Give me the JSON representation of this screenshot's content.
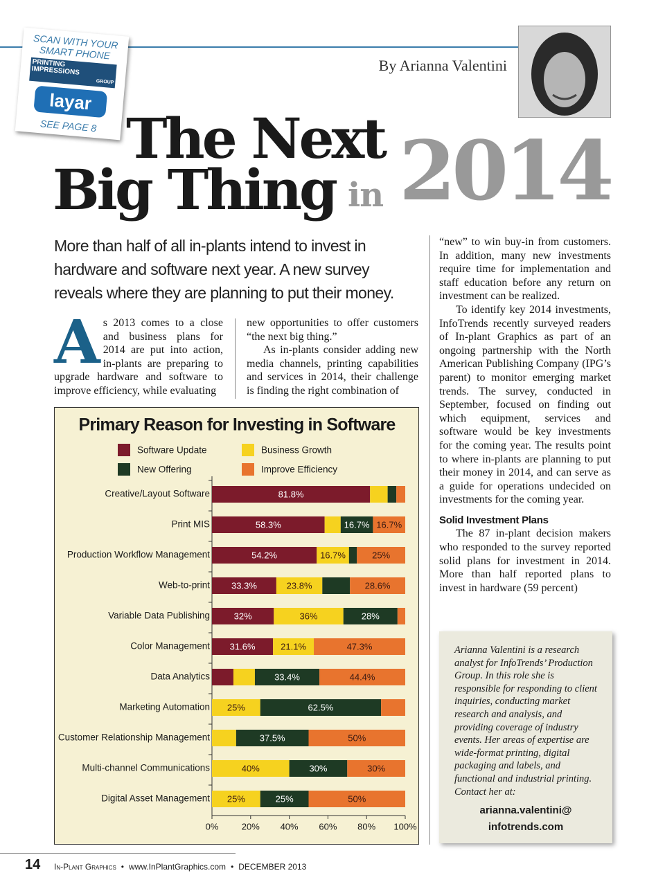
{
  "badge": {
    "scan": "SCAN WITH YOUR",
    "phone": "SMART PHONE",
    "logo_top": "PRINTING",
    "logo_mid": "IMPRESSIONS",
    "logo_bottom": "GROUP",
    "app": "layar",
    "see": "SEE PAGE 8"
  },
  "byline": "By Arianna Valentini",
  "headline": {
    "line1": "The Next",
    "line2": "Big Thing",
    "in": "in",
    "year": "2014"
  },
  "deck": "More than half of all in-plants intend to invest in hardware and software next year. A new survey reveals where they are planning to put their money.",
  "article": {
    "drop_cap": "A",
    "col1": "s 2013 comes to a close and business plans for 2014 are put into action, in-plants are preparing to upgrade hardware and software to improve efficiency, while evaluating",
    "col2": [
      "new opportunities to offer customers “the next big thing.”",
      "As in-plants consider adding new media channels, printing capabilities and services in 2014, their challenge is finding the right combination of"
    ],
    "col3": [
      "“new” to win buy-in from customers. In addition, many new investments require time for implementation and staff education before any return on investment can be realized.",
      "To identify key 2014 investments, InfoTrends recently surveyed readers of In-plant Graphics as part of an ongoing partnership with the North American Publishing Company (IPG’s parent) to monitor emerging market trends. The survey, conducted in September, focused on finding out which equipment, services and software would be key investments for the coming year. The results point to where in-plants are planning to put their money in 2014, and can serve as a guide for operations undecided on investments for the coming year."
    ],
    "subhead": "Solid Investment Plans",
    "col3_after": "The 87 in-plant decision makers who responded to the survey reported solid plans for investment in 2014. More than half reported plans to invest in hardware (59 percent)"
  },
  "bio": {
    "text": "Arianna Valentini is a research analyst for InfoTrends’ Production Group. In this role she is responsible for responding to client inquiries, conducting market research and analysis, and providing coverage of industry events. Her areas of expertise are wide-format printing, digital packaging and labels, and functional and industrial printing. Contact her at:",
    "email_line1": "arianna.valentini@",
    "email_line2": "infotrends.com"
  },
  "footer": {
    "page": "14",
    "items": [
      "In-Plant Graphics",
      "•",
      "www.InPlantGraphics.com",
      "•",
      "DECEMBER 2013"
    ]
  },
  "chart_data": {
    "type": "bar",
    "orientation": "horizontal",
    "stacked": true,
    "title": "Primary Reason for Investing in Software",
    "categories": [
      "Creative/Layout Software",
      "Print MIS",
      "Production Workflow Management",
      "Web-to-print",
      "Variable Data Publishing",
      "Color Management",
      "Data Analytics",
      "Marketing Automation",
      "Customer Relationship Management",
      "Multi-channel Communications",
      "Digital Asset Management"
    ],
    "series": [
      {
        "name": "Software Update",
        "color": "#7c1b2b",
        "values": [
          81.8,
          58.3,
          54.2,
          33.3,
          32,
          31.6,
          11.1,
          0,
          0,
          0,
          0
        ],
        "value_labels": [
          "81.8%",
          "58.3%",
          "54.2%",
          "33.3%",
          "32%",
          "31.6%",
          null,
          null,
          null,
          null,
          null
        ]
      },
      {
        "name": "Business Growth",
        "color": "#f6d21f",
        "values": [
          9.1,
          8.3,
          16.7,
          23.8,
          36,
          21.1,
          11.1,
          25,
          12.5,
          40,
          25
        ],
        "value_labels": [
          null,
          null,
          "16.7%",
          "23.8%",
          "36%",
          "21.1%",
          null,
          "25%",
          null,
          "40%",
          "25%"
        ]
      },
      {
        "name": "New Offering",
        "color": "#1e3a24",
        "values": [
          4.5,
          16.7,
          4.1,
          14.3,
          28,
          0,
          33.4,
          62.5,
          37.5,
          30,
          25
        ],
        "value_labels": [
          null,
          "16.7%",
          null,
          null,
          "28%",
          null,
          "33.4%",
          "62.5%",
          "37.5%",
          "30%",
          "25%"
        ]
      },
      {
        "name": "Improve Efficiency",
        "color": "#e8742e",
        "values": [
          4.6,
          16.7,
          25,
          28.6,
          4,
          47.3,
          44.4,
          12.5,
          50,
          30,
          50
        ],
        "value_labels": [
          null,
          "16.7%",
          "25%",
          "28.6%",
          null,
          "47.3%",
          "44.4%",
          null,
          "50%",
          "30%",
          "50%"
        ]
      }
    ],
    "xlim": [
      0,
      100
    ],
    "xticks": [
      {
        "value": 0,
        "label": "0%"
      },
      {
        "value": 20,
        "label": "20%"
      },
      {
        "value": 40,
        "label": "40%"
      },
      {
        "value": 60,
        "label": "60%"
      },
      {
        "value": 80,
        "label": "80%"
      },
      {
        "value": 100,
        "label": "100%"
      }
    ]
  }
}
